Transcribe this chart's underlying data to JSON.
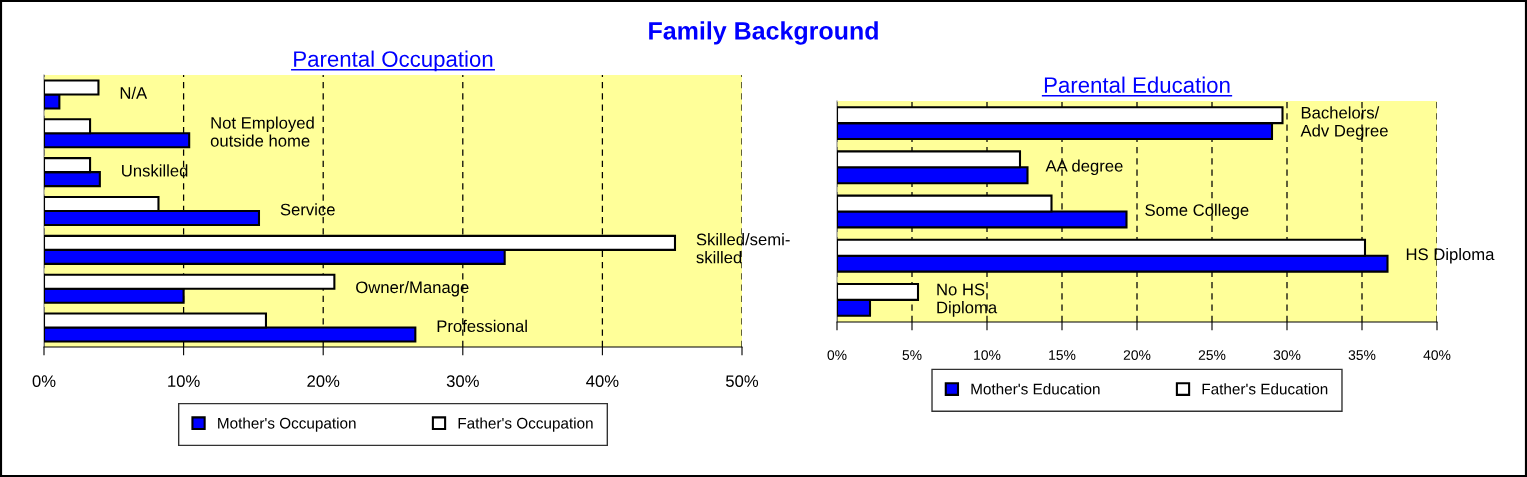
{
  "chart_data": [
    {
      "type": "bar",
      "orientation": "horizontal",
      "title": "Family Background",
      "subtitle": "Parental Occupation",
      "categories": [
        "N/A",
        "Not Employed\noutside home",
        "Unskilled",
        "Service",
        "Skilled/semi-\nskilled",
        "Owner/Manage",
        "Professional"
      ],
      "series": [
        {
          "name": "Mother's Occupation",
          "color": "#0000ff",
          "values": [
            1.1,
            10.4,
            4.0,
            15.4,
            33.0,
            10.0,
            26.6
          ]
        },
        {
          "name": "Father's Occupation",
          "color": "#ffffff",
          "values": [
            3.9,
            3.3,
            3.3,
            8.2,
            45.2,
            20.8,
            15.9
          ]
        }
      ],
      "xlim": [
        0,
        50
      ],
      "xticks": [
        {
          "value": 0,
          "label": "0%"
        },
        {
          "value": 10,
          "label": "10%"
        },
        {
          "value": 20,
          "label": "20%"
        },
        {
          "value": 30,
          "label": "30%"
        },
        {
          "value": 40,
          "label": "40%"
        },
        {
          "value": 50,
          "label": "50%"
        }
      ],
      "grid": "x",
      "legend": "bottom",
      "tick_labels": "x"
    },
    {
      "type": "bar",
      "orientation": "horizontal",
      "subtitle": "Parental Education",
      "categories": [
        "Bachelors/\nAdv Degree",
        "AA degree",
        "Some College",
        "HS Diploma",
        "No HS\nDiploma"
      ],
      "series": [
        {
          "name": "Mother's Education",
          "color": "#0000ff",
          "values": [
            29.0,
            12.7,
            19.3,
            36.7,
            2.2
          ]
        },
        {
          "name": "Father's Education",
          "color": "#ffffff",
          "values": [
            29.7,
            12.2,
            14.3,
            35.2,
            5.4
          ]
        }
      ],
      "xlim": [
        0,
        40
      ],
      "xticks": [
        {
          "value": 0,
          "label": "0%"
        },
        {
          "value": 5,
          "label": "5%"
        },
        {
          "value": 10,
          "label": "10%"
        },
        {
          "value": 15,
          "label": "15%"
        },
        {
          "value": 20,
          "label": "20%"
        },
        {
          "value": 25,
          "label": "25%"
        },
        {
          "value": 30,
          "label": "30%"
        },
        {
          "value": 35,
          "label": "35%"
        },
        {
          "value": 40,
          "label": "40%"
        }
      ],
      "grid": "x",
      "legend": "bottom",
      "tick_labels": "x"
    }
  ]
}
